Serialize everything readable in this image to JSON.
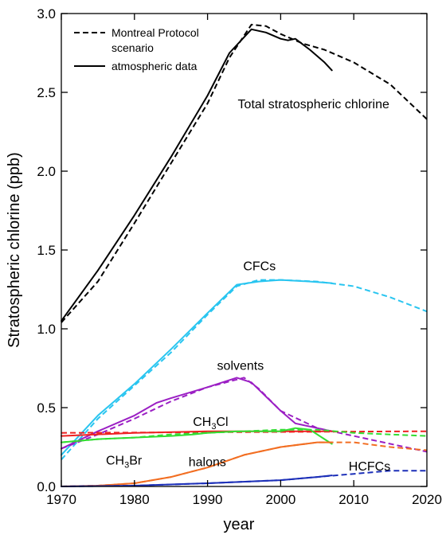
{
  "chart_data": {
    "type": "line",
    "title": "",
    "xlabel": "year",
    "ylabel": "Stratospheric chlorine (ppb)",
    "xlim": [
      1970,
      2020
    ],
    "ylim": [
      0,
      3.0
    ],
    "x_ticks": [
      1970,
      1980,
      1990,
      2000,
      2010,
      2020
    ],
    "y_ticks": [
      "0.0",
      "0.5",
      "1.0",
      "1.5",
      "2.0",
      "2.5",
      "3.0"
    ],
    "grid": false,
    "legend": {
      "position": "top-left",
      "entries": [
        {
          "label_lines": [
            "Montreal Protocol",
            "scenario"
          ],
          "style": "dashed"
        },
        {
          "label_lines": [
            "atmospheric data"
          ],
          "style": "solid"
        }
      ]
    },
    "annotations": [
      {
        "text": "Total stratospheric chlorine",
        "x": 2004.5,
        "y": 2.4,
        "anchor": "middle"
      },
      {
        "text": "CFCs",
        "x": 1997.1,
        "y": 1.37,
        "anchor": "middle"
      },
      {
        "text": "solvents",
        "x": 1994.5,
        "y": 0.74,
        "anchor": "middle"
      },
      {
        "text": "CH",
        "sub": "3",
        "tail": "Cl",
        "x": 1988,
        "y": 0.385,
        "anchor": "start"
      },
      {
        "text": "CH",
        "sub": "3",
        "tail": "Br",
        "x": 1976.1,
        "y": 0.14,
        "anchor": "start"
      },
      {
        "text": "halons",
        "x": 1987.4,
        "y": 0.13,
        "anchor": "start"
      },
      {
        "text": "HCFCs",
        "x": 2009.3,
        "y": 0.1,
        "anchor": "start"
      }
    ],
    "series": [
      {
        "id": "total-scenario",
        "color": "#000000",
        "dashed": true,
        "points": [
          [
            1970,
            1.04
          ],
          [
            1975,
            1.3
          ],
          [
            1980,
            1.67
          ],
          [
            1985,
            2.05
          ],
          [
            1990,
            2.43
          ],
          [
            1993,
            2.72
          ],
          [
            1996,
            2.93
          ],
          [
            1998,
            2.92
          ],
          [
            2000,
            2.87
          ],
          [
            2003,
            2.81
          ],
          [
            2006,
            2.77
          ],
          [
            2010,
            2.69
          ],
          [
            2015,
            2.55
          ],
          [
            2020,
            2.33
          ]
        ]
      },
      {
        "id": "total-data",
        "color": "#000000",
        "dashed": false,
        "points": [
          [
            1970,
            1.05
          ],
          [
            1975,
            1.37
          ],
          [
            1980,
            1.72
          ],
          [
            1985,
            2.09
          ],
          [
            1990,
            2.48
          ],
          [
            1993,
            2.75
          ],
          [
            1996,
            2.9
          ],
          [
            1998,
            2.88
          ],
          [
            2000,
            2.84
          ],
          [
            2001,
            2.83
          ],
          [
            2002,
            2.84
          ],
          [
            2004,
            2.77
          ],
          [
            2006,
            2.69
          ],
          [
            2007,
            2.64
          ]
        ]
      },
      {
        "id": "cfcs-scenario",
        "color": "#29c5f0",
        "dashed": true,
        "points": [
          [
            1970,
            0.17
          ],
          [
            1975,
            0.43
          ],
          [
            1980,
            0.64
          ],
          [
            1985,
            0.85
          ],
          [
            1990,
            1.09
          ],
          [
            1994,
            1.27
          ],
          [
            1997,
            1.31
          ],
          [
            2000,
            1.31
          ],
          [
            2005,
            1.3
          ],
          [
            2010,
            1.27
          ],
          [
            2015,
            1.2
          ],
          [
            2020,
            1.11
          ]
        ]
      },
      {
        "id": "cfcs-data",
        "color": "#29c5f0",
        "dashed": false,
        "points": [
          [
            1970,
            0.2
          ],
          [
            1975,
            0.45
          ],
          [
            1980,
            0.65
          ],
          [
            1985,
            0.87
          ],
          [
            1990,
            1.1
          ],
          [
            1994,
            1.28
          ],
          [
            1997,
            1.3
          ],
          [
            2000,
            1.31
          ],
          [
            2004,
            1.3
          ],
          [
            2007,
            1.29
          ]
        ]
      },
      {
        "id": "solvents-scenario",
        "color": "#9b1fc4",
        "dashed": true,
        "points": [
          [
            1970,
            0.24
          ],
          [
            1975,
            0.33
          ],
          [
            1980,
            0.43
          ],
          [
            1985,
            0.54
          ],
          [
            1990,
            0.63
          ],
          [
            1995,
            0.69
          ],
          [
            1997,
            0.62
          ],
          [
            2000,
            0.48
          ],
          [
            2005,
            0.37
          ],
          [
            2010,
            0.32
          ],
          [
            2015,
            0.27
          ],
          [
            2020,
            0.22
          ]
        ]
      },
      {
        "id": "solvents-data",
        "color": "#9b1fc4",
        "dashed": false,
        "points": [
          [
            1970,
            0.24
          ],
          [
            1975,
            0.35
          ],
          [
            1980,
            0.45
          ],
          [
            1983,
            0.53
          ],
          [
            1985,
            0.56
          ],
          [
            1990,
            0.63
          ],
          [
            1994,
            0.69
          ],
          [
            1996,
            0.66
          ],
          [
            1998,
            0.57
          ],
          [
            2000,
            0.48
          ],
          [
            2002,
            0.4
          ],
          [
            2005,
            0.37
          ],
          [
            2007,
            0.35
          ]
        ]
      },
      {
        "id": "ch3cl-scenario",
        "color": "#ee2222",
        "dashed": true,
        "points": [
          [
            1970,
            0.34
          ],
          [
            2020,
            0.35
          ]
        ]
      },
      {
        "id": "ch3cl-data",
        "color": "#ee2222",
        "dashed": false,
        "points": [
          [
            1970,
            0.32
          ],
          [
            1980,
            0.34
          ],
          [
            1990,
            0.35
          ],
          [
            2000,
            0.35
          ],
          [
            2004,
            0.35
          ],
          [
            2007,
            0.35
          ]
        ]
      },
      {
        "id": "ch3br-scenario",
        "color": "#33dd33",
        "dashed": true,
        "points": [
          [
            1970,
            0.28
          ],
          [
            1975,
            0.3
          ],
          [
            1980,
            0.31
          ],
          [
            1985,
            0.33
          ],
          [
            1990,
            0.34
          ],
          [
            1995,
            0.35
          ],
          [
            2000,
            0.36
          ],
          [
            2005,
            0.36
          ],
          [
            2010,
            0.34
          ],
          [
            2015,
            0.33
          ],
          [
            2020,
            0.32
          ]
        ]
      },
      {
        "id": "ch3br-data",
        "color": "#33dd33",
        "dashed": false,
        "points": [
          [
            1970,
            0.28
          ],
          [
            1975,
            0.3
          ],
          [
            1980,
            0.31
          ],
          [
            1985,
            0.32
          ],
          [
            1988,
            0.33
          ],
          [
            1990,
            0.34
          ],
          [
            1994,
            0.35
          ],
          [
            1998,
            0.35
          ],
          [
            2000,
            0.35
          ],
          [
            2001,
            0.36
          ],
          [
            2002,
            0.37
          ],
          [
            2004,
            0.36
          ],
          [
            2006,
            0.3
          ],
          [
            2007,
            0.27
          ]
        ]
      },
      {
        "id": "halons-scenario",
        "color": "#f26e22",
        "dashed": true,
        "points": [
          [
            1970,
            0.0
          ],
          [
            1975,
            0.005
          ],
          [
            1980,
            0.02
          ],
          [
            1985,
            0.06
          ],
          [
            1990,
            0.12
          ],
          [
            1995,
            0.2
          ],
          [
            2000,
            0.25
          ],
          [
            2005,
            0.28
          ],
          [
            2010,
            0.28
          ],
          [
            2015,
            0.25
          ],
          [
            2020,
            0.23
          ]
        ]
      },
      {
        "id": "halons-data",
        "color": "#f26e22",
        "dashed": false,
        "points": [
          [
            1970,
            0.0
          ],
          [
            1975,
            0.005
          ],
          [
            1980,
            0.02
          ],
          [
            1985,
            0.06
          ],
          [
            1990,
            0.12
          ],
          [
            1995,
            0.2
          ],
          [
            2000,
            0.25
          ],
          [
            2005,
            0.28
          ],
          [
            2007,
            0.28
          ]
        ]
      },
      {
        "id": "hcfcs-scenario",
        "color": "#1c2fb8",
        "dashed": true,
        "points": [
          [
            1970,
            0.0
          ],
          [
            1980,
            0.005
          ],
          [
            1990,
            0.02
          ],
          [
            2000,
            0.04
          ],
          [
            2005,
            0.06
          ],
          [
            2010,
            0.08
          ],
          [
            2015,
            0.1
          ],
          [
            2020,
            0.1
          ]
        ]
      },
      {
        "id": "hcfcs-data",
        "color": "#1c2fb8",
        "dashed": false,
        "points": [
          [
            1970,
            0.0
          ],
          [
            1980,
            0.005
          ],
          [
            1990,
            0.02
          ],
          [
            2000,
            0.04
          ],
          [
            2005,
            0.06
          ],
          [
            2007,
            0.07
          ]
        ]
      }
    ]
  }
}
